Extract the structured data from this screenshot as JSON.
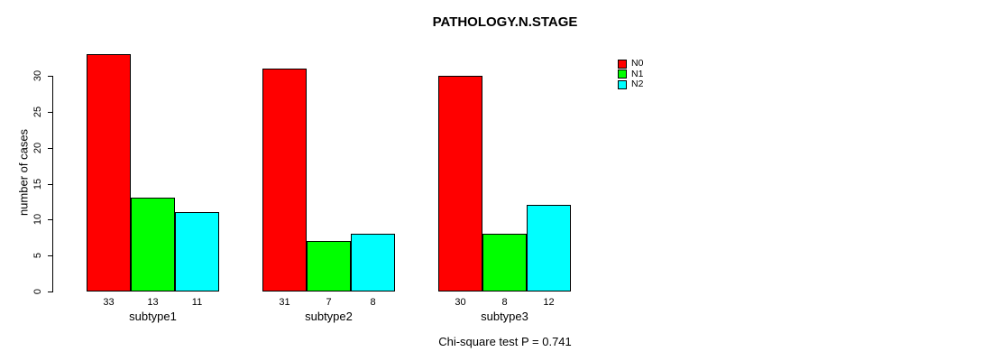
{
  "chart_data": {
    "type": "bar",
    "title": "PATHOLOGY.N.STAGE",
    "xlabel": "",
    "ylabel": "number of cases",
    "categories": [
      "subtype1",
      "subtype2",
      "subtype3"
    ],
    "series": [
      {
        "name": "N0",
        "color": "#ff0000",
        "values": [
          33,
          31,
          30
        ]
      },
      {
        "name": "N1",
        "color": "#00ff00",
        "values": [
          13,
          7,
          8
        ]
      },
      {
        "name": "N2",
        "color": "#00ffff",
        "values": [
          11,
          8,
          12
        ]
      }
    ],
    "y_ticks": [
      0,
      5,
      10,
      15,
      20,
      25,
      30
    ],
    "ylim": [
      0,
      33
    ],
    "grid": false,
    "bar_value_labels_shown": true,
    "legend_position": "right",
    "annotation": "Chi-square test P = 0.741"
  }
}
